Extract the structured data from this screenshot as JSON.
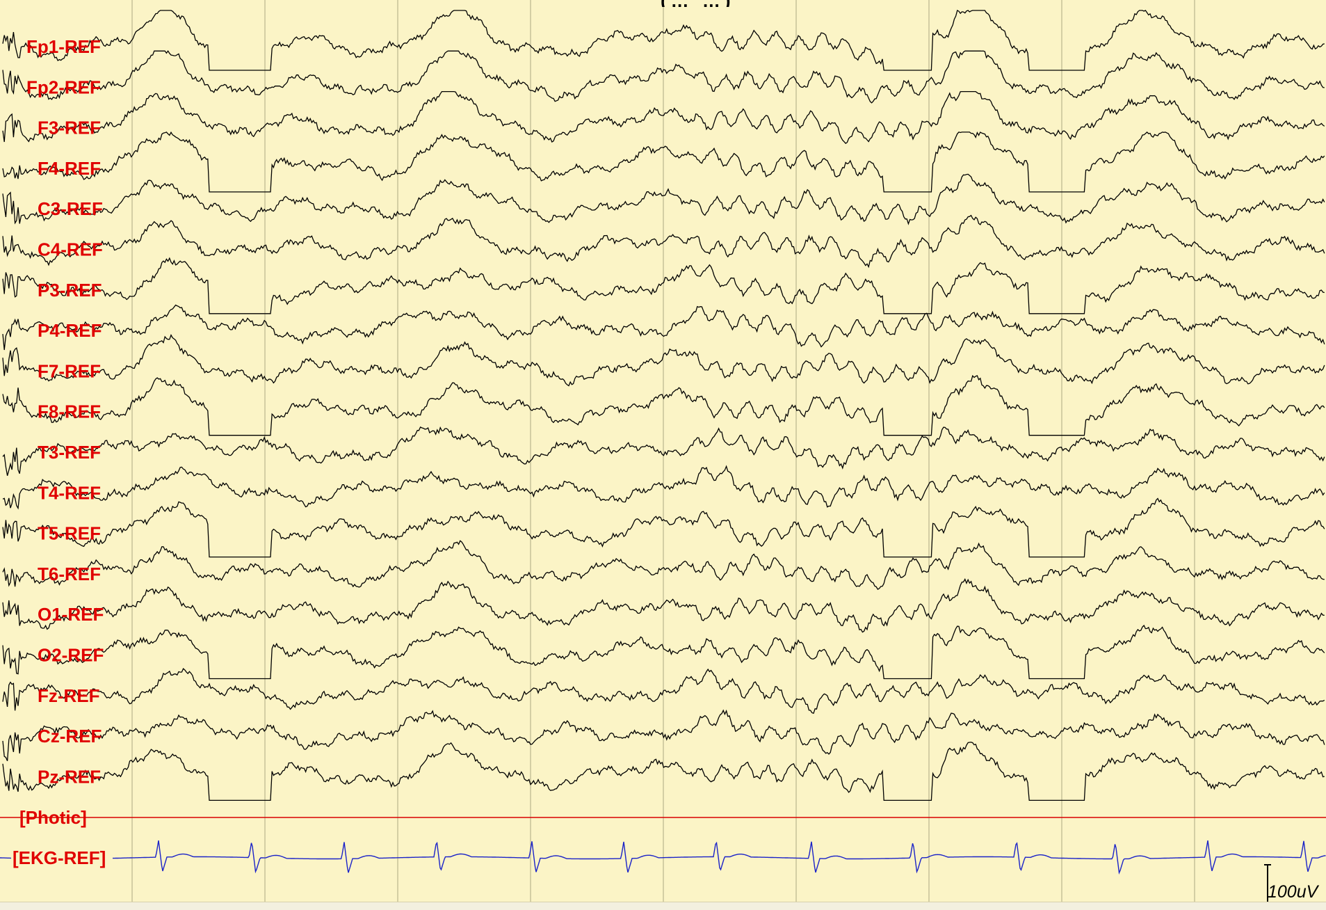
{
  "title_fragment": "(… …)",
  "chart_data": {
    "type": "line",
    "description_units": "EEG traces, referential montage",
    "channels": [
      "Fp1-REF",
      "Fp2-REF",
      "F3-REF",
      "F4-REF",
      "C3-REF",
      "C4-REF",
      "P3-REF",
      "P4-REF",
      "F7-REF",
      "F8-REF",
      "T3-REF",
      "T4-REF",
      "T5-REF",
      "T6-REF",
      "O1-REF",
      "O2-REF",
      "Fz-REF",
      "Cz-REF",
      "Pz-REF"
    ],
    "aux_channels": [
      "[Photic]",
      "[EKG-REF]"
    ],
    "scale_label": "100uV",
    "time_divisions": 10,
    "grid": "vertical lines at each second",
    "colors": {
      "background": "#fbf4c6",
      "grid": "#b9b48e",
      "trace": "#000000",
      "label": "#e00000",
      "photic": "#d90000",
      "ekg": "#1a22c8"
    }
  }
}
